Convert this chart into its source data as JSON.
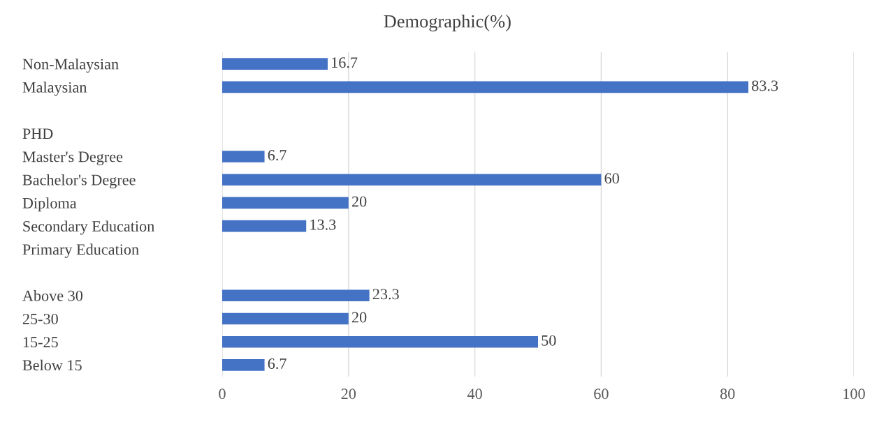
{
  "chart_data": {
    "type": "bar",
    "orientation": "horizontal",
    "title": "Demographic(%)",
    "categories": [
      "Non-Malaysian",
      "Malaysian",
      null,
      "PHD",
      "Master's Degree",
      "Bachelor's Degree",
      "Diploma",
      "Secondary Education",
      "Primary Education",
      null,
      "Above 30",
      "25-30",
      "15-25",
      "Below 15"
    ],
    "values": [
      16.7,
      83.3,
      null,
      null,
      6.7,
      60,
      20,
      13.3,
      null,
      null,
      23.3,
      20,
      50,
      6.7
    ],
    "color": "#4472c4",
    "xlim": [
      0,
      100
    ],
    "xticks": [
      0,
      20,
      40,
      60,
      80,
      100
    ],
    "grid": "x",
    "data_labels": true
  }
}
